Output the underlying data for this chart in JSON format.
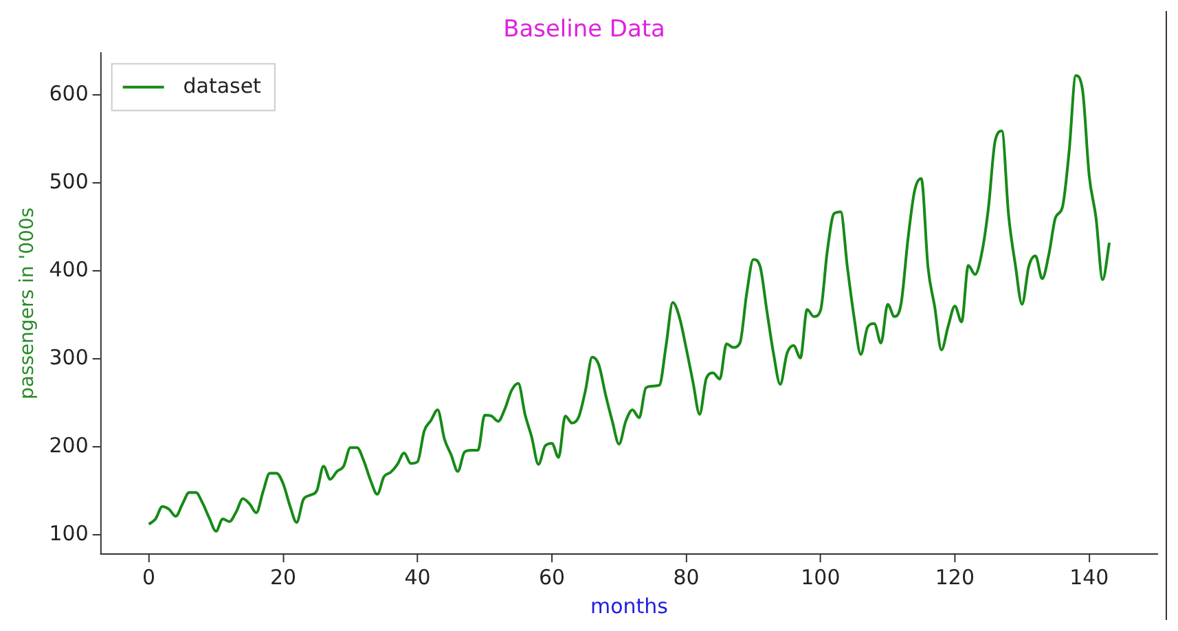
{
  "chart_data": {
    "type": "line",
    "title": "Baseline Data",
    "xlabel": "months",
    "ylabel": "passengers in '000s",
    "x": [
      0,
      1,
      2,
      3,
      4,
      5,
      6,
      7,
      8,
      9,
      10,
      11,
      12,
      13,
      14,
      15,
      16,
      17,
      18,
      19,
      20,
      21,
      22,
      23,
      24,
      25,
      26,
      27,
      28,
      29,
      30,
      31,
      32,
      33,
      34,
      35,
      36,
      37,
      38,
      39,
      40,
      41,
      42,
      43,
      44,
      45,
      46,
      47,
      48,
      49,
      50,
      51,
      52,
      53,
      54,
      55,
      56,
      57,
      58,
      59,
      60,
      61,
      62,
      63,
      64,
      65,
      66,
      67,
      68,
      69,
      70,
      71,
      72,
      73,
      74,
      75,
      76,
      77,
      78,
      79,
      80,
      81,
      82,
      83,
      84,
      85,
      86,
      87,
      88,
      89,
      90,
      91,
      92,
      93,
      94,
      95,
      96,
      97,
      98,
      99,
      100,
      101,
      102,
      103,
      104,
      105,
      106,
      107,
      108,
      109,
      110,
      111,
      112,
      113,
      114,
      115,
      116,
      117,
      118,
      119,
      120,
      121,
      122,
      123,
      124,
      125,
      126,
      127,
      128,
      129,
      130,
      131,
      132,
      133,
      134,
      135,
      136,
      137,
      138,
      139,
      140,
      141,
      142,
      143
    ],
    "series": [
      {
        "name": "dataset",
        "color": "#178a17",
        "values": [
          112,
          118,
          132,
          129,
          121,
          135,
          148,
          148,
          136,
          119,
          104,
          118,
          115,
          126,
          141,
          135,
          125,
          149,
          170,
          170,
          158,
          133,
          114,
          140,
          145,
          150,
          178,
          163,
          172,
          178,
          199,
          199,
          184,
          162,
          146,
          166,
          171,
          180,
          193,
          181,
          183,
          218,
          230,
          242,
          209,
          191,
          172,
          194,
          196,
          196,
          236,
          235,
          229,
          243,
          264,
          272,
          237,
          211,
          180,
          201,
          204,
          188,
          235,
          227,
          234,
          264,
          302,
          293,
          259,
          229,
          203,
          229,
          242,
          233,
          267,
          269,
          270,
          315,
          364,
          347,
          312,
          274,
          237,
          278,
          284,
          277,
          317,
          313,
          318,
          374,
          413,
          405,
          355,
          306,
          271,
          306,
          315,
          301,
          356,
          348,
          355,
          422,
          465,
          467,
          404,
          347,
          305,
          336,
          340,
          318,
          362,
          348,
          363,
          435,
          491,
          505,
          404,
          359,
          310,
          337,
          360,
          342,
          406,
          396,
          420,
          472,
          548,
          559,
          463,
          407,
          362,
          405,
          417,
          391,
          419,
          461,
          472,
          535,
          622,
          606,
          508,
          461,
          390,
          432
        ]
      }
    ],
    "xlim": [
      -7.15,
      150.15
    ],
    "ylim": [
      78.1,
      647.9
    ],
    "xticks": [
      0,
      20,
      40,
      60,
      80,
      100,
      120,
      140
    ],
    "yticks": [
      100,
      200,
      300,
      400,
      500,
      600
    ],
    "grid": false,
    "legend": "top left",
    "line_style": "solid",
    "marker": "none"
  }
}
